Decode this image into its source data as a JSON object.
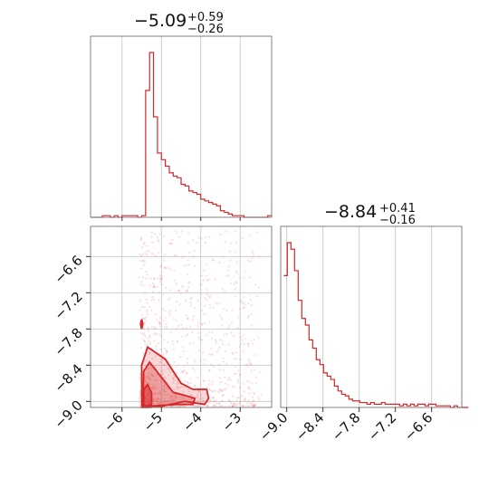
{
  "chart_data": {
    "type": "corner",
    "color": "#d62728",
    "params": [
      {
        "name": "",
        "median": "−5.09",
        "upper": "+0.59",
        "lower": "−0.26",
        "range": [
          -6.8,
          -2.2
        ]
      },
      {
        "name": "",
        "median": "−8.84",
        "upper": "+0.41",
        "lower": "−0.16",
        "range": [
          -9.1,
          -6.1
        ]
      }
    ],
    "titles": {
      "p0": {
        "main": "−5.09",
        "sup": "+0.59",
        "sub": "−0.26"
      },
      "p1": {
        "main": "−8.84",
        "sup": "+0.41",
        "sub": "−0.16"
      }
    },
    "ticks": {
      "p0_x": [
        {
          "v": -6,
          "label": "−6"
        },
        {
          "v": -5,
          "label": "−5"
        },
        {
          "v": -4,
          "label": "−4"
        },
        {
          "v": -3,
          "label": "−3"
        }
      ],
      "p1_y": [
        {
          "v": -6.6,
          "label": "−6.6"
        },
        {
          "v": -7.2,
          "label": "−7.2"
        },
        {
          "v": -7.8,
          "label": "−7.8"
        },
        {
          "v": -8.4,
          "label": "−8.4"
        },
        {
          "v": -9.0,
          "label": "−9.0"
        }
      ],
      "p1_x": [
        {
          "v": -9.0,
          "label": "−9.0"
        },
        {
          "v": -8.4,
          "label": "−8.4"
        },
        {
          "v": -7.8,
          "label": "−7.8"
        },
        {
          "v": -7.2,
          "label": "−7.2"
        },
        {
          "v": -6.6,
          "label": "−6.6"
        }
      ]
    },
    "hist_p0": {
      "bin_start": -6.8,
      "bin_width": 0.1,
      "counts": [
        0,
        0,
        0,
        1,
        1,
        0,
        1,
        0,
        1,
        1,
        1,
        1,
        0,
        1,
        77,
        100,
        61,
        39,
        35,
        31,
        27,
        25,
        24,
        20,
        19,
        16,
        15,
        14,
        11,
        10,
        9,
        8,
        7,
        4,
        3,
        2,
        1,
        1,
        1,
        0,
        0,
        0,
        0,
        0,
        0,
        1
      ]
    },
    "hist_p1": {
      "bin_start": -9.05,
      "bin_width": 0.06,
      "counts": [
        80,
        100,
        96,
        83,
        65,
        54,
        50,
        41,
        36,
        29,
        26,
        21,
        19,
        17,
        13,
        10,
        8,
        7,
        5,
        4,
        4,
        3,
        3,
        2,
        3,
        2,
        2,
        3,
        2,
        2,
        2,
        2,
        1,
        2,
        1,
        2,
        1,
        2,
        2,
        1,
        2,
        2,
        1,
        1,
        1,
        1,
        0,
        1,
        0,
        0,
        0
      ]
    },
    "scatter_count": 900,
    "contours": [
      {
        "level": "outer",
        "x": [
          -5.5,
          -5.5,
          -5.35,
          -4.9,
          -4.5,
          -4.2,
          -3.85,
          -3.8,
          -3.9,
          -4.4,
          -5.0,
          -5.3,
          -5.48,
          -5.5
        ],
        "y": [
          -9.1,
          -8.4,
          -8.1,
          -8.3,
          -8.7,
          -8.8,
          -8.8,
          -8.95,
          -9.05,
          -9.0,
          -9.08,
          -9.1,
          -9.1,
          -9.1
        ]
      },
      {
        "level": "middle",
        "x": [
          -5.47,
          -5.45,
          -5.3,
          -5.0,
          -4.7,
          -4.4,
          -4.15,
          -4.2,
          -4.6,
          -5.1,
          -5.35,
          -5.47
        ],
        "y": [
          -9.08,
          -8.5,
          -8.35,
          -8.6,
          -8.85,
          -8.9,
          -8.95,
          -9.05,
          -9.05,
          -9.07,
          -9.08,
          -9.08
        ]
      },
      {
        "level": "inner",
        "x": [
          -5.45,
          -5.45,
          -5.35,
          -5.25,
          -5.25,
          -5.35,
          -5.45
        ],
        "y": [
          -9.07,
          -8.8,
          -8.72,
          -8.85,
          -9.05,
          -9.08,
          -9.07
        ]
      },
      {
        "level": "blob",
        "x": [
          -5.5,
          -5.47,
          -5.5,
          -5.53,
          -5.5
        ],
        "y": [
          -7.8,
          -7.72,
          -7.64,
          -7.72,
          -7.8
        ]
      }
    ]
  }
}
